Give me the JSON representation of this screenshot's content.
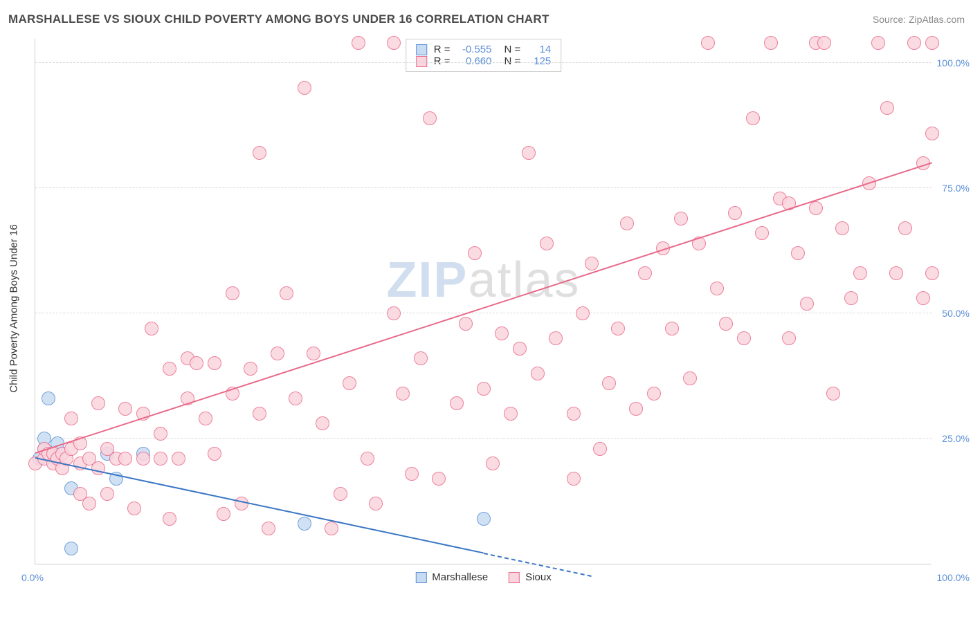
{
  "title": "MARSHALLESE VS SIOUX CHILD POVERTY AMONG BOYS UNDER 16 CORRELATION CHART",
  "source": "Source: ZipAtlas.com",
  "y_axis_title": "Child Poverty Among Boys Under 16",
  "watermark_a": "ZIP",
  "watermark_b": "atlas",
  "chart": {
    "type": "scatter",
    "xlim": [
      0,
      100
    ],
    "ylim": [
      0,
      105
    ],
    "x_tick_left": "0.0%",
    "x_tick_right": "100.0%",
    "y_ticks": [
      {
        "v": 25,
        "label": "25.0%"
      },
      {
        "v": 50,
        "label": "50.0%"
      },
      {
        "v": 75,
        "label": "75.0%"
      },
      {
        "v": 100,
        "label": "100.0%"
      }
    ],
    "background_color": "#ffffff",
    "grid_color": "#d9d9d9",
    "marker_radius": 10,
    "marker_stroke_width": 1,
    "line_width": 2,
    "series": [
      {
        "name": "Marshallese",
        "fill": "#c7dcf2",
        "stroke": "#5b8fd6",
        "line_color": "#3a76c4",
        "R": "-0.555",
        "N": "14",
        "trend": {
          "x1": 0,
          "y1": 21,
          "x2": 50,
          "y2": 2,
          "dash_to_x": 62
        },
        "points": [
          {
            "x": 0.5,
            "y": 21
          },
          {
            "x": 1,
            "y": 23
          },
          {
            "x": 1,
            "y": 25
          },
          {
            "x": 1.5,
            "y": 33
          },
          {
            "x": 2,
            "y": 22
          },
          {
            "x": 2.5,
            "y": 24
          },
          {
            "x": 3,
            "y": 22
          },
          {
            "x": 4,
            "y": 15
          },
          {
            "x": 4,
            "y": 3
          },
          {
            "x": 8,
            "y": 22
          },
          {
            "x": 9,
            "y": 17
          },
          {
            "x": 12,
            "y": 22
          },
          {
            "x": 30,
            "y": 8
          },
          {
            "x": 50,
            "y": 9
          }
        ]
      },
      {
        "name": "Sioux",
        "fill": "#fbd5de",
        "stroke": "#e86a8a",
        "line_color": "#e86a8a",
        "R": "0.660",
        "N": "125",
        "trend": {
          "x1": 0,
          "y1": 22,
          "x2": 100,
          "y2": 80
        },
        "points": [
          {
            "x": 0,
            "y": 20
          },
          {
            "x": 1,
            "y": 21
          },
          {
            "x": 1,
            "y": 23
          },
          {
            "x": 1.5,
            "y": 22
          },
          {
            "x": 2,
            "y": 20
          },
          {
            "x": 2,
            "y": 22
          },
          {
            "x": 2.5,
            "y": 21
          },
          {
            "x": 3,
            "y": 19
          },
          {
            "x": 3,
            "y": 22
          },
          {
            "x": 3.5,
            "y": 21
          },
          {
            "x": 4,
            "y": 23
          },
          {
            "x": 4,
            "y": 29
          },
          {
            "x": 5,
            "y": 24
          },
          {
            "x": 5,
            "y": 14
          },
          {
            "x": 5,
            "y": 20
          },
          {
            "x": 6,
            "y": 12
          },
          {
            "x": 6,
            "y": 21
          },
          {
            "x": 7,
            "y": 19
          },
          {
            "x": 7,
            "y": 32
          },
          {
            "x": 8,
            "y": 23
          },
          {
            "x": 8,
            "y": 14
          },
          {
            "x": 9,
            "y": 21
          },
          {
            "x": 10,
            "y": 31
          },
          {
            "x": 10,
            "y": 21
          },
          {
            "x": 11,
            "y": 11
          },
          {
            "x": 12,
            "y": 30
          },
          {
            "x": 12,
            "y": 21
          },
          {
            "x": 13,
            "y": 47
          },
          {
            "x": 14,
            "y": 26
          },
          {
            "x": 14,
            "y": 21
          },
          {
            "x": 15,
            "y": 39
          },
          {
            "x": 15,
            "y": 9
          },
          {
            "x": 16,
            "y": 21
          },
          {
            "x": 17,
            "y": 41
          },
          {
            "x": 17,
            "y": 33
          },
          {
            "x": 18,
            "y": 40
          },
          {
            "x": 19,
            "y": 29
          },
          {
            "x": 20,
            "y": 22
          },
          {
            "x": 20,
            "y": 40
          },
          {
            "x": 21,
            "y": 10
          },
          {
            "x": 22,
            "y": 34
          },
          {
            "x": 22,
            "y": 54
          },
          {
            "x": 23,
            "y": 12
          },
          {
            "x": 24,
            "y": 39
          },
          {
            "x": 25,
            "y": 30
          },
          {
            "x": 25,
            "y": 82
          },
          {
            "x": 26,
            "y": 7
          },
          {
            "x": 27,
            "y": 42
          },
          {
            "x": 28,
            "y": 54
          },
          {
            "x": 29,
            "y": 33
          },
          {
            "x": 30,
            "y": 95
          },
          {
            "x": 31,
            "y": 42
          },
          {
            "x": 32,
            "y": 28
          },
          {
            "x": 33,
            "y": 7
          },
          {
            "x": 34,
            "y": 14
          },
          {
            "x": 35,
            "y": 36
          },
          {
            "x": 36,
            "y": 104
          },
          {
            "x": 37,
            "y": 21
          },
          {
            "x": 38,
            "y": 12
          },
          {
            "x": 40,
            "y": 104
          },
          {
            "x": 40,
            "y": 50
          },
          {
            "x": 41,
            "y": 34
          },
          {
            "x": 42,
            "y": 18
          },
          {
            "x": 43,
            "y": 41
          },
          {
            "x": 44,
            "y": 89
          },
          {
            "x": 45,
            "y": 17
          },
          {
            "x": 47,
            "y": 32
          },
          {
            "x": 48,
            "y": 48
          },
          {
            "x": 49,
            "y": 62
          },
          {
            "x": 50,
            "y": 35
          },
          {
            "x": 51,
            "y": 20
          },
          {
            "x": 52,
            "y": 46
          },
          {
            "x": 53,
            "y": 30
          },
          {
            "x": 54,
            "y": 43
          },
          {
            "x": 55,
            "y": 82
          },
          {
            "x": 56,
            "y": 38
          },
          {
            "x": 57,
            "y": 64
          },
          {
            "x": 58,
            "y": 45
          },
          {
            "x": 60,
            "y": 17
          },
          {
            "x": 60,
            "y": 30
          },
          {
            "x": 61,
            "y": 50
          },
          {
            "x": 62,
            "y": 60
          },
          {
            "x": 63,
            "y": 23
          },
          {
            "x": 64,
            "y": 36
          },
          {
            "x": 65,
            "y": 47
          },
          {
            "x": 66,
            "y": 68
          },
          {
            "x": 67,
            "y": 31
          },
          {
            "x": 68,
            "y": 58
          },
          {
            "x": 69,
            "y": 34
          },
          {
            "x": 70,
            "y": 63
          },
          {
            "x": 71,
            "y": 47
          },
          {
            "x": 72,
            "y": 69
          },
          {
            "x": 73,
            "y": 37
          },
          {
            "x": 74,
            "y": 64
          },
          {
            "x": 75,
            "y": 104
          },
          {
            "x": 76,
            "y": 55
          },
          {
            "x": 77,
            "y": 48
          },
          {
            "x": 78,
            "y": 70
          },
          {
            "x": 79,
            "y": 45
          },
          {
            "x": 80,
            "y": 89
          },
          {
            "x": 81,
            "y": 66
          },
          {
            "x": 82,
            "y": 104
          },
          {
            "x": 83,
            "y": 73
          },
          {
            "x": 84,
            "y": 45
          },
          {
            "x": 84,
            "y": 72
          },
          {
            "x": 85,
            "y": 62
          },
          {
            "x": 86,
            "y": 52
          },
          {
            "x": 87,
            "y": 104
          },
          {
            "x": 87,
            "y": 71
          },
          {
            "x": 88,
            "y": 104
          },
          {
            "x": 89,
            "y": 34
          },
          {
            "x": 90,
            "y": 67
          },
          {
            "x": 91,
            "y": 53
          },
          {
            "x": 92,
            "y": 58
          },
          {
            "x": 93,
            "y": 76
          },
          {
            "x": 94,
            "y": 104
          },
          {
            "x": 95,
            "y": 91
          },
          {
            "x": 96,
            "y": 58
          },
          {
            "x": 97,
            "y": 67
          },
          {
            "x": 98,
            "y": 104
          },
          {
            "x": 99,
            "y": 80
          },
          {
            "x": 99,
            "y": 53
          },
          {
            "x": 100,
            "y": 104
          },
          {
            "x": 100,
            "y": 86
          },
          {
            "x": 100,
            "y": 58
          }
        ]
      }
    ]
  },
  "legend": [
    {
      "label": "Marshallese",
      "fill": "#c7dcf2",
      "stroke": "#5b8fd6"
    },
    {
      "label": "Sioux",
      "fill": "#fbd5de",
      "stroke": "#e86a8a"
    }
  ]
}
